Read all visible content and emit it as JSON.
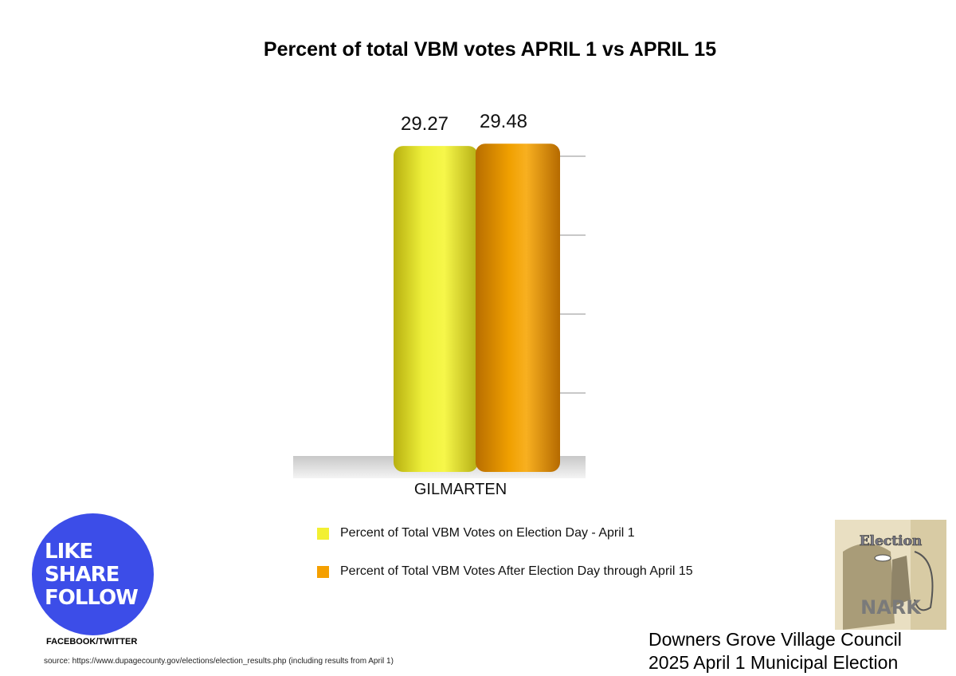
{
  "chart_data": {
    "type": "bar",
    "title": "Percent of total VBM votes APRIL 1 vs  APRIL 15",
    "categories": [
      "GILMARTEN"
    ],
    "series": [
      {
        "name": "Percent of Total VBM Votes on Election Day - April 1",
        "values": [
          29.27
        ],
        "value_labels": [
          "29.27"
        ],
        "color": "#f2f032"
      },
      {
        "name": "Percent of Total VBM Votes After Election Day through April 15",
        "values": [
          29.48
        ],
        "value_labels": [
          "29.48"
        ],
        "color": "#f5a000"
      }
    ],
    "ylim": [
      0,
      30
    ],
    "xlabel": "",
    "ylabel": "",
    "grid": true,
    "legend_position": "bottom"
  },
  "badge": {
    "line1": "LIKE",
    "line2": "SHARE",
    "line3": "FOLLOW",
    "caption": "FACEBOOK/TWITTER"
  },
  "source": "source: https://www.dupagecounty.gov/elections/election_results.php (including results from April 1)",
  "footer": {
    "line1": "Downers Grove Village Council",
    "line2": "2025 April 1 Municipal Election"
  },
  "logo": {
    "top": "Election",
    "bottom": "NARK"
  }
}
